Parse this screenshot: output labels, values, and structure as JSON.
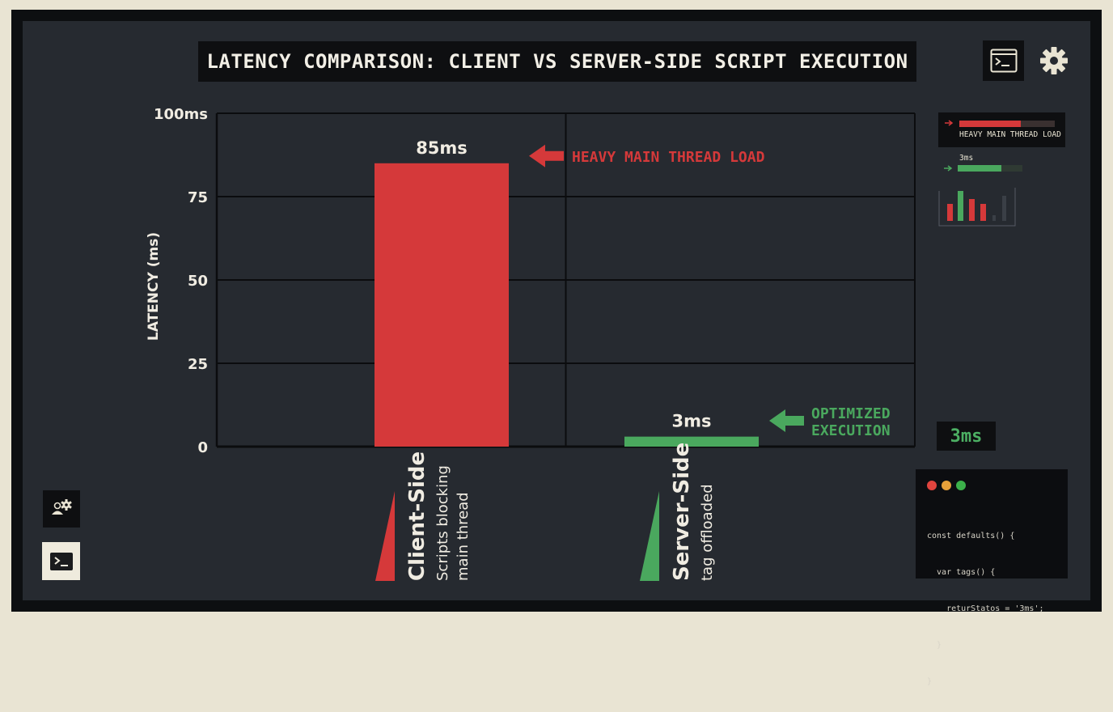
{
  "header": {
    "title": "LATENCY COMPARISON: CLIENT VS SERVER-SIDE SCRIPT EXECUTION",
    "terminal_icon": "terminal-icon",
    "settings_icon": "gear-icon"
  },
  "chart_data": {
    "type": "bar",
    "title": "LATENCY COMPARISON: CLIENT VS SERVER-SIDE SCRIPT EXECUTION",
    "ylabel": "LATENCY (ms)",
    "xlabel": "",
    "ylim": [
      0,
      100
    ],
    "yticks": [
      0,
      25,
      50,
      75,
      100
    ],
    "ytick_labels": [
      "0",
      "25",
      "50",
      "75",
      "100ms"
    ],
    "grid": true,
    "categories": [
      "Client-Side",
      "Server-Side"
    ],
    "category_subtitles": [
      [
        "Scripts blocking",
        "main thread"
      ],
      [
        "tag offloaded"
      ]
    ],
    "values": [
      85,
      3
    ],
    "value_labels": [
      "85ms",
      "3ms"
    ],
    "colors": [
      "#d5393a",
      "#4aa85e"
    ],
    "annotations": [
      {
        "lines": [
          "HEAVY MAIN THREAD LOAD"
        ],
        "color": "#d5393a"
      },
      {
        "lines": [
          "OPTIMIZED",
          "EXECUTION"
        ],
        "color": "#4aa85e"
      }
    ]
  },
  "side_panel": {
    "legend_red_label": "HEAVY MAIN THREAD LOAD",
    "legend_green_value": "3ms",
    "metric_value": "3ms",
    "colors": {
      "red": "#d5393a",
      "green": "#4aa85e"
    }
  },
  "code_window": {
    "dot_colors": [
      "#e0443e",
      "#e8a13a",
      "#3cb04a"
    ],
    "lines": [
      "const defaults() {",
      "  var tags() {",
      "    returStatos = '3ms';",
      "  }",
      "}"
    ]
  },
  "footer_icons": [
    "user-settings-icon",
    "terminal-icon"
  ]
}
